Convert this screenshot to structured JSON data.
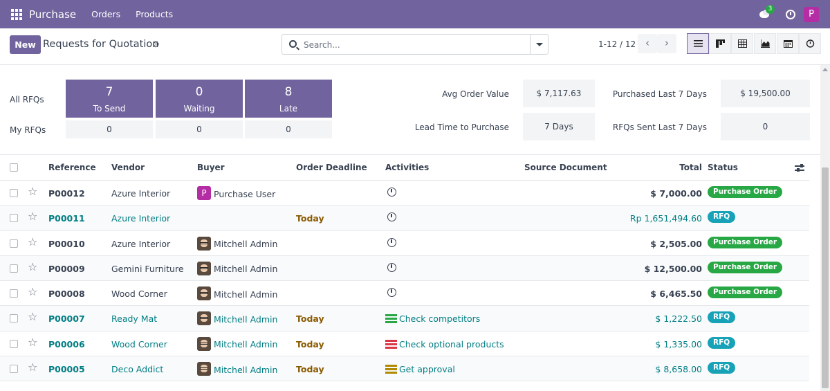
{
  "topnav": {
    "brand": "Purchase",
    "menu": [
      "Orders",
      "Products"
    ],
    "messages_count": "3",
    "user_initial": "P"
  },
  "control": {
    "new_label": "New",
    "title": "Requests for Quotation",
    "search_placeholder": "Search...",
    "pager": "1-12 / 12"
  },
  "dashboard": {
    "row_all": "All RFQs",
    "row_my": "My RFQs",
    "tiles": [
      {
        "value": "7",
        "label": "To Send",
        "my": "0"
      },
      {
        "value": "0",
        "label": "Waiting",
        "my": "0"
      },
      {
        "value": "8",
        "label": "Late",
        "my": "0"
      }
    ],
    "stats": {
      "avg_order_label": "Avg Order Value",
      "avg_order_value": "$ 7,117.63",
      "purchased_label": "Purchased Last 7 Days",
      "purchased_value": "$ 19,500.00",
      "lead_time_label": "Lead Time to Purchase",
      "lead_time_value": "7  Days",
      "rfqs_sent_label": "RFQs Sent Last 7 Days",
      "rfqs_sent_value": "0"
    }
  },
  "table": {
    "headers": {
      "reference": "Reference",
      "vendor": "Vendor",
      "buyer": "Buyer",
      "deadline": "Order Deadline",
      "activities": "Activities",
      "source": "Source Document",
      "total": "Total",
      "status": "Status"
    },
    "rows": [
      {
        "ref": "P00012",
        "vendor": "Azure Interior",
        "buyer": "Purchase User",
        "buyer_initial": "P",
        "deadline": "",
        "activity": "",
        "total": "$ 7,000.00",
        "status": "Purchase Order"
      },
      {
        "ref": "P00011",
        "vendor": "Azure Interior",
        "buyer": "",
        "buyer_initial": "",
        "deadline": "Today",
        "activity": "",
        "total": "Rp 1,651,494.60",
        "status": "RFQ"
      },
      {
        "ref": "P00010",
        "vendor": "Azure Interior",
        "buyer": "Mitchell Admin",
        "buyer_initial": "",
        "deadline": "",
        "activity": "",
        "total": "$ 2,505.00",
        "status": "Purchase Order"
      },
      {
        "ref": "P00009",
        "vendor": "Gemini Furniture",
        "buyer": "Mitchell Admin",
        "buyer_initial": "",
        "deadline": "",
        "activity": "",
        "total": "$ 12,500.00",
        "status": "Purchase Order"
      },
      {
        "ref": "P00008",
        "vendor": "Wood Corner",
        "buyer": "Mitchell Admin",
        "buyer_initial": "",
        "deadline": "",
        "activity": "",
        "total": "$ 6,465.50",
        "status": "Purchase Order"
      },
      {
        "ref": "P00007",
        "vendor": "Ready Mat",
        "buyer": "Mitchell Admin",
        "buyer_initial": "",
        "deadline": "Today",
        "activity": "Check competitors",
        "total": "$ 1,222.50",
        "status": "RFQ"
      },
      {
        "ref": "P00006",
        "vendor": "Wood Corner",
        "buyer": "Mitchell Admin",
        "buyer_initial": "",
        "deadline": "Today",
        "activity": "Check optional products",
        "total": "$ 1,335.00",
        "status": "RFQ"
      },
      {
        "ref": "P00005",
        "vendor": "Deco Addict",
        "buyer": "Mitchell Admin",
        "buyer_initial": "",
        "deadline": "Today",
        "activity": "Get approval",
        "total": "$ 8,658.00",
        "status": "RFQ"
      }
    ]
  },
  "colors": {
    "brand": "#71639e",
    "status_po": "#28a745",
    "status_rfq": "#17a2b8",
    "link": "#017e84",
    "today": "#8a5a00",
    "activity_green": "#28a745",
    "activity_red": "#dc3545",
    "activity_orange": "#b08900"
  }
}
